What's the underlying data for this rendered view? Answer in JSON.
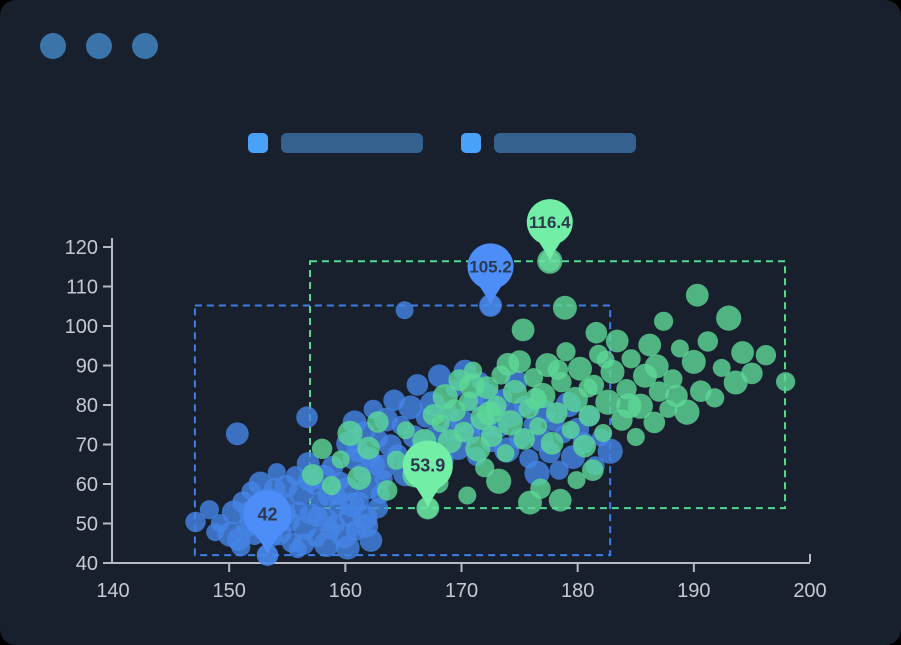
{
  "window": {
    "dot_color": "#3a74a8",
    "background": "#19202d"
  },
  "legend": {
    "items": [
      {
        "name": "legend-item-1",
        "swatch_color": "#4aa2f8",
        "bar_color": "#35618e"
      },
      {
        "name": "legend-item-2",
        "swatch_color": "#4aa2f8",
        "bar_color": "#35618e"
      }
    ]
  },
  "chart_data": {
    "type": "scatter",
    "title": "",
    "xlabel": "",
    "ylabel": "",
    "xlim": [
      140,
      200
    ],
    "ylim": [
      40,
      120
    ],
    "x_ticks": [
      140,
      150,
      160,
      170,
      180,
      190,
      200
    ],
    "y_ticks": [
      40,
      50,
      60,
      70,
      80,
      90,
      100,
      110,
      120
    ],
    "grid": false,
    "legend_position": "top",
    "axis_color": "#b7bac3",
    "tick_label_color": "#c6c9d3",
    "annotation_text_color": "#2c3950",
    "series": [
      {
        "name": "series-blue",
        "point_color": "#4584e6",
        "pin_color": "#4d8df8",
        "region_color": "#3d7ee9",
        "region": {
          "x": [
            147.05,
            182.8
          ],
          "y": [
            42,
            105.2
          ]
        },
        "annotations": [
          {
            "label": "105.2",
            "x": 172.5,
            "y": 105.2,
            "bulb_r": 23
          },
          {
            "label": "42",
            "x": 153.3,
            "y": 42,
            "bulb_r": 24
          }
        ],
        "points": [
          [
            149.2,
            50.1
          ],
          [
            150.1,
            47.3
          ],
          [
            150.4,
            52.8
          ],
          [
            150.8,
            45.9
          ],
          [
            151.2,
            55.4
          ],
          [
            151.5,
            49
          ],
          [
            151.9,
            58.2
          ],
          [
            152.2,
            46.8
          ],
          [
            152.4,
            53.7
          ],
          [
            152.7,
            60.1
          ],
          [
            153,
            48.5
          ],
          [
            153.3,
            42
          ],
          [
            153.4,
            56.6
          ],
          [
            153.8,
            51.2
          ],
          [
            154.1,
            63
          ],
          [
            154.3,
            47.7
          ],
          [
            154.6,
            54.9
          ],
          [
            154.9,
            59.4
          ],
          [
            155.2,
            50.6
          ],
          [
            155.4,
            45.2
          ],
          [
            155.7,
            62.1
          ],
          [
            156,
            53.3
          ],
          [
            156.2,
            57.8
          ],
          [
            156.5,
            48.9
          ],
          [
            156.8,
            65.2
          ],
          [
            157,
            52.4
          ],
          [
            157.3,
            59.9
          ],
          [
            157.5,
            46.4
          ],
          [
            157.8,
            55.8
          ],
          [
            158.1,
            61.7
          ],
          [
            158.3,
            50.9
          ],
          [
            158.6,
            57.1
          ],
          [
            158.9,
            64.4
          ],
          [
            159.1,
            49.8
          ],
          [
            159.4,
            54.2
          ],
          [
            159.6,
            60.8
          ],
          [
            159.9,
            46.9
          ],
          [
            160.1,
            58.7
          ],
          [
            160.4,
            52
          ],
          [
            160.7,
            66.3
          ],
          [
            160.9,
            48.2
          ],
          [
            161.2,
            55.6
          ],
          [
            161.4,
            62.9
          ],
          [
            161.7,
            51.5
          ],
          [
            162,
            59.2
          ],
          [
            162.2,
            45.7
          ],
          [
            162.5,
            64.8
          ],
          [
            162.8,
            53.9
          ],
          [
            163,
            57.4
          ],
          [
            163.3,
            61.2
          ],
          [
            152,
            50.5
          ],
          [
            153.6,
            47.1
          ],
          [
            154.8,
            52.3
          ],
          [
            156.4,
            44.8
          ],
          [
            157.6,
            51.7
          ],
          [
            158.7,
            48.3
          ],
          [
            159.3,
            56.9
          ],
          [
            160.6,
            54.7
          ],
          [
            161.8,
            49.4
          ],
          [
            156.9,
            61
          ],
          [
            153.9,
            58.8
          ],
          [
            151.7,
            53.1
          ],
          [
            151,
            44.1
          ],
          [
            155.9,
            43.5
          ],
          [
            158.4,
            44.7
          ],
          [
            160.2,
            43.9
          ],
          [
            150.7,
            72.7
          ],
          [
            156.7,
            76.9
          ],
          [
            147.1,
            50.4
          ],
          [
            148.3,
            53.5
          ],
          [
            148.8,
            47.8
          ],
          [
            160.3,
            70.2
          ],
          [
            160.8,
            75.6
          ],
          [
            161.1,
            68.4
          ],
          [
            161.6,
            73.1
          ],
          [
            162.1,
            66.8
          ],
          [
            162.4,
            78.9
          ],
          [
            162.9,
            71.4
          ],
          [
            163.2,
            64.2
          ],
          [
            163.5,
            76.3
          ],
          [
            163.9,
            69.7
          ],
          [
            164.2,
            81.2
          ],
          [
            164.5,
            67.5
          ],
          [
            164.8,
            74.8
          ],
          [
            165.1,
            104
          ],
          [
            165.2,
            62.6
          ],
          [
            165.6,
            79.4
          ],
          [
            165.9,
            72
          ],
          [
            166.2,
            85.1
          ],
          [
            166.5,
            68.9
          ],
          [
            166.9,
            76.7
          ],
          [
            167.2,
            63.8
          ],
          [
            167.5,
            80.3
          ],
          [
            167.8,
            71.9
          ],
          [
            168.1,
            87.4
          ],
          [
            168.4,
            66.1
          ],
          [
            168.8,
            78
          ],
          [
            169.1,
            73.6
          ],
          [
            169.4,
            84.2
          ],
          [
            169.7,
            69.3
          ],
          [
            170,
            76
          ],
          [
            170.3,
            88.6
          ],
          [
            170.7,
            72.7
          ],
          [
            171,
            80.9
          ],
          [
            171.3,
            67
          ],
          [
            171.6,
            86.1
          ],
          [
            171.9,
            75.2
          ],
          [
            172.2,
            82.5
          ],
          [
            172.5,
            105.2
          ],
          [
            172.6,
            70.8
          ],
          [
            172.9,
            78.5
          ],
          [
            173.2,
            74.1
          ],
          [
            173.6,
            81.8
          ],
          [
            173.9,
            68.6
          ],
          [
            174.3,
            77.3
          ],
          [
            174.7,
            85.9
          ],
          [
            175,
            71.6
          ],
          [
            175.4,
            79.8
          ],
          [
            175.8,
            66.4
          ],
          [
            176.1,
            74.9
          ],
          [
            176.5,
            62.7
          ],
          [
            176.9,
            71.2
          ],
          [
            177.2,
            78.4
          ],
          [
            177.6,
            68
          ],
          [
            178,
            75.8
          ],
          [
            178.4,
            63.5
          ],
          [
            178.8,
            72.6
          ],
          [
            179.2,
            80.1
          ],
          [
            179.6,
            66.8
          ],
          [
            180,
            73.9
          ],
          [
            180.5,
            70.4
          ],
          [
            181,
            77.1
          ],
          [
            181.5,
            64.6
          ],
          [
            182,
            71.8
          ],
          [
            182.8,
            68.3
          ]
        ]
      },
      {
        "name": "series-green",
        "point_color": "#5cd897",
        "pin_color": "#72eea6",
        "region_color": "#55d892",
        "region": {
          "x": [
            156.96,
            197.85
          ],
          "y": [
            53.9,
            116.4
          ]
        },
        "annotations": [
          {
            "label": "116.4",
            "x": 177.6,
            "y": 116.4,
            "bulb_r": 23
          },
          {
            "label": "53.9",
            "x": 167.1,
            "y": 53.9,
            "bulb_r": 25
          }
        ],
        "points": [
          [
            168.2,
            75.4
          ],
          [
            168.6,
            82.1
          ],
          [
            169,
            70.8
          ],
          [
            169.4,
            78.6
          ],
          [
            169.8,
            86.3
          ],
          [
            170.2,
            73.2
          ],
          [
            170.6,
            80.9
          ],
          [
            171,
            88.7
          ],
          [
            171.4,
            68.9
          ],
          [
            171.8,
            76.7
          ],
          [
            172.2,
            84.4
          ],
          [
            172.6,
            72.1
          ],
          [
            173,
            79.8
          ],
          [
            173.4,
            87.6
          ],
          [
            173.8,
            67.8
          ],
          [
            174.2,
            75.5
          ],
          [
            174.6,
            83.3
          ],
          [
            175,
            91
          ],
          [
            175.4,
            71.4
          ],
          [
            175.8,
            79.1
          ],
          [
            176.2,
            86.9
          ],
          [
            176.6,
            74.6
          ],
          [
            177,
            82.4
          ],
          [
            177.4,
            90.1
          ],
          [
            177.8,
            70.3
          ],
          [
            178.2,
            78
          ],
          [
            178.6,
            85.8
          ],
          [
            179,
            93.5
          ],
          [
            179.4,
            73.7
          ],
          [
            179.8,
            81.4
          ],
          [
            180.2,
            89.2
          ],
          [
            180.6,
            69.6
          ],
          [
            181,
            77.3
          ],
          [
            181.4,
            85.1
          ],
          [
            181.8,
            92.8
          ],
          [
            182.2,
            72.9
          ],
          [
            182.6,
            80.7
          ],
          [
            183,
            88.4
          ],
          [
            183.4,
            96.2
          ],
          [
            183.8,
            76.2
          ],
          [
            184.2,
            84
          ],
          [
            184.6,
            91.7
          ],
          [
            185,
            71.9
          ],
          [
            185.4,
            79.7
          ],
          [
            185.8,
            87.4
          ],
          [
            186.2,
            95.2
          ],
          [
            186.6,
            75.6
          ],
          [
            187,
            83.4
          ],
          [
            187.4,
            101.2
          ],
          [
            187.8,
            79
          ],
          [
            170.9,
            84.9
          ],
          [
            172.4,
            77.9
          ],
          [
            174,
            90.3
          ],
          [
            176.4,
            81.6
          ],
          [
            178.3,
            88.9
          ],
          [
            180.9,
            84.3
          ],
          [
            182.4,
            91.5
          ],
          [
            184.4,
            79.8
          ],
          [
            186.8,
            89.8
          ],
          [
            188.5,
            82.3
          ],
          [
            157.2,
            62.3
          ],
          [
            158,
            68.9
          ],
          [
            158.8,
            59.6
          ],
          [
            159.6,
            66.2
          ],
          [
            160.4,
            72.8
          ],
          [
            161.2,
            61.5
          ],
          [
            162,
            69.1
          ],
          [
            162.8,
            75.7
          ],
          [
            163.6,
            58.4
          ],
          [
            164.4,
            66
          ],
          [
            165.2,
            73.6
          ],
          [
            166,
            62.3
          ],
          [
            166.8,
            70.9
          ],
          [
            167.1,
            53.9
          ],
          [
            167.6,
            77.5
          ],
          [
            168,
            60.2
          ],
          [
            188.2,
            86.6
          ],
          [
            188.8,
            94.3
          ],
          [
            189.4,
            78.2
          ],
          [
            190,
            90.9
          ],
          [
            190.3,
            107.8
          ],
          [
            190.6,
            83.5
          ],
          [
            191.2,
            96.1
          ],
          [
            191.8,
            81.8
          ],
          [
            192.4,
            89.4
          ],
          [
            193,
            102
          ],
          [
            193.6,
            85.7
          ],
          [
            194.2,
            93.3
          ],
          [
            195,
            88
          ],
          [
            196.2,
            92.6
          ],
          [
            197.9,
            85.9
          ],
          [
            170.5,
            57.1
          ],
          [
            173.2,
            60.7
          ],
          [
            175.9,
            55.3
          ],
          [
            178.5,
            55.9
          ],
          [
            181.3,
            63.5
          ],
          [
            176.8,
            58.8
          ],
          [
            172,
            64.1
          ],
          [
            179.9,
            61
          ],
          [
            177.6,
            116.4
          ],
          [
            178.9,
            104.6
          ],
          [
            175.3,
            99
          ],
          [
            181.6,
            98.3
          ]
        ]
      }
    ]
  }
}
